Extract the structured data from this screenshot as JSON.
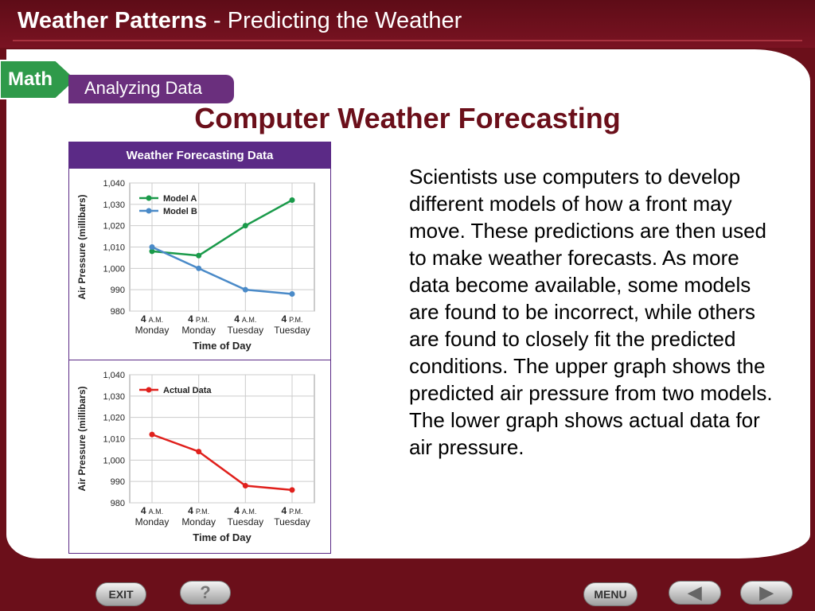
{
  "header": {
    "title_bold": "Weather Patterns",
    "title_rest": " - Predicting the Weather"
  },
  "badge": {
    "math": "Math",
    "analyzing": "Analyzing Data"
  },
  "slide_title": "Computer Weather Forecasting",
  "body_text": "Scientists use computers to develop different models of how a front may move. These predictions are then used to make weather forecasts. As more data become available, some models are found to be incorrect, while others are found to closely fit the predicted conditions. The upper graph shows the predicted air pressure from two models. The lower graph shows actual data for air pressure.",
  "chart_banner": "Weather Forecasting Data",
  "chart_data": [
    {
      "type": "line",
      "ylabel": "Air Pressure (millibars)",
      "xlabel": "Time of Day",
      "categories": [
        {
          "hour": "4",
          "ampm": "A.M.",
          "day": "Monday"
        },
        {
          "hour": "4",
          "ampm": "P.M.",
          "day": "Monday"
        },
        {
          "hour": "4",
          "ampm": "A.M.",
          "day": "Tuesday"
        },
        {
          "hour": "4",
          "ampm": "P.M.",
          "day": "Tuesday"
        }
      ],
      "ylim": [
        980,
        1040
      ],
      "yticks": [
        "980",
        "990",
        "1,000",
        "1,010",
        "1,020",
        "1,030",
        "1,040"
      ],
      "legend": "top-left",
      "series": [
        {
          "name": "Model A",
          "color": "#1a9a4a",
          "values": [
            1008,
            1006,
            1020,
            1032
          ]
        },
        {
          "name": "Model B",
          "color": "#4a8ac8",
          "values": [
            1010,
            1000,
            990,
            988
          ]
        }
      ]
    },
    {
      "type": "line",
      "ylabel": "Air Pressure (millibars)",
      "xlabel": "Time of Day",
      "categories": [
        {
          "hour": "4",
          "ampm": "A.M.",
          "day": "Monday"
        },
        {
          "hour": "4",
          "ampm": "P.M.",
          "day": "Monday"
        },
        {
          "hour": "4",
          "ampm": "A.M.",
          "day": "Tuesday"
        },
        {
          "hour": "4",
          "ampm": "P.M.",
          "day": "Tuesday"
        }
      ],
      "ylim": [
        980,
        1040
      ],
      "yticks": [
        "980",
        "990",
        "1,000",
        "1,010",
        "1,020",
        "1,030",
        "1,040"
      ],
      "legend": "top-left",
      "series": [
        {
          "name": "Actual Data",
          "color": "#e0201c",
          "values": [
            1012,
            1004,
            988,
            986
          ]
        }
      ]
    }
  ],
  "nav": {
    "exit": "EXIT",
    "help": "?",
    "menu": "MENU",
    "prev": "◀",
    "next": "▶"
  }
}
